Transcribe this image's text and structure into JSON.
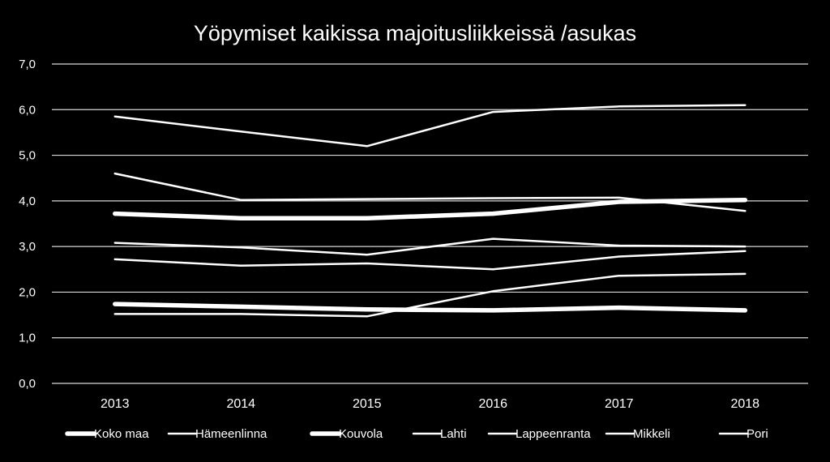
{
  "chart_data": {
    "type": "line",
    "title": "Yöpymiset kaikissa majoitusliikkeissä /asukas",
    "x": [
      "2013",
      "2014",
      "2015",
      "2016",
      "2017",
      "2018"
    ],
    "y_ticks": [
      "0,0",
      "1,0",
      "2,0",
      "3,0",
      "4,0",
      "5,0",
      "6,0",
      "7,0"
    ],
    "ylim": [
      0,
      7
    ],
    "grid": true,
    "legend_position": "bottom",
    "line_color": "#ffffff",
    "background": "#000000",
    "series": [
      {
        "name": "Koko maa",
        "values": [
          3.72,
          3.62,
          3.62,
          3.72,
          3.98,
          4.02
        ],
        "thick": true
      },
      {
        "name": "Hämeenlinna",
        "values": [
          3.08,
          2.98,
          2.82,
          3.17,
          3.02,
          3.0
        ],
        "thick": false
      },
      {
        "name": "Kouvola",
        "values": [
          1.74,
          1.68,
          1.62,
          1.6,
          1.66,
          1.6
        ],
        "thick": true
      },
      {
        "name": "Lahti",
        "values": [
          1.52,
          1.52,
          1.47,
          2.02,
          2.36,
          2.4
        ],
        "thick": false
      },
      {
        "name": "Lappeenranta",
        "values": [
          2.72,
          2.58,
          2.63,
          2.5,
          2.78,
          2.9
        ],
        "thick": false
      },
      {
        "name": "Mikkeli",
        "values": [
          4.6,
          4.02,
          4.04,
          4.06,
          4.07,
          3.78
        ],
        "thick": false
      },
      {
        "name": "Pori",
        "values": [
          5.85,
          5.52,
          5.2,
          5.95,
          6.07,
          6.1
        ],
        "thick": false
      }
    ]
  }
}
